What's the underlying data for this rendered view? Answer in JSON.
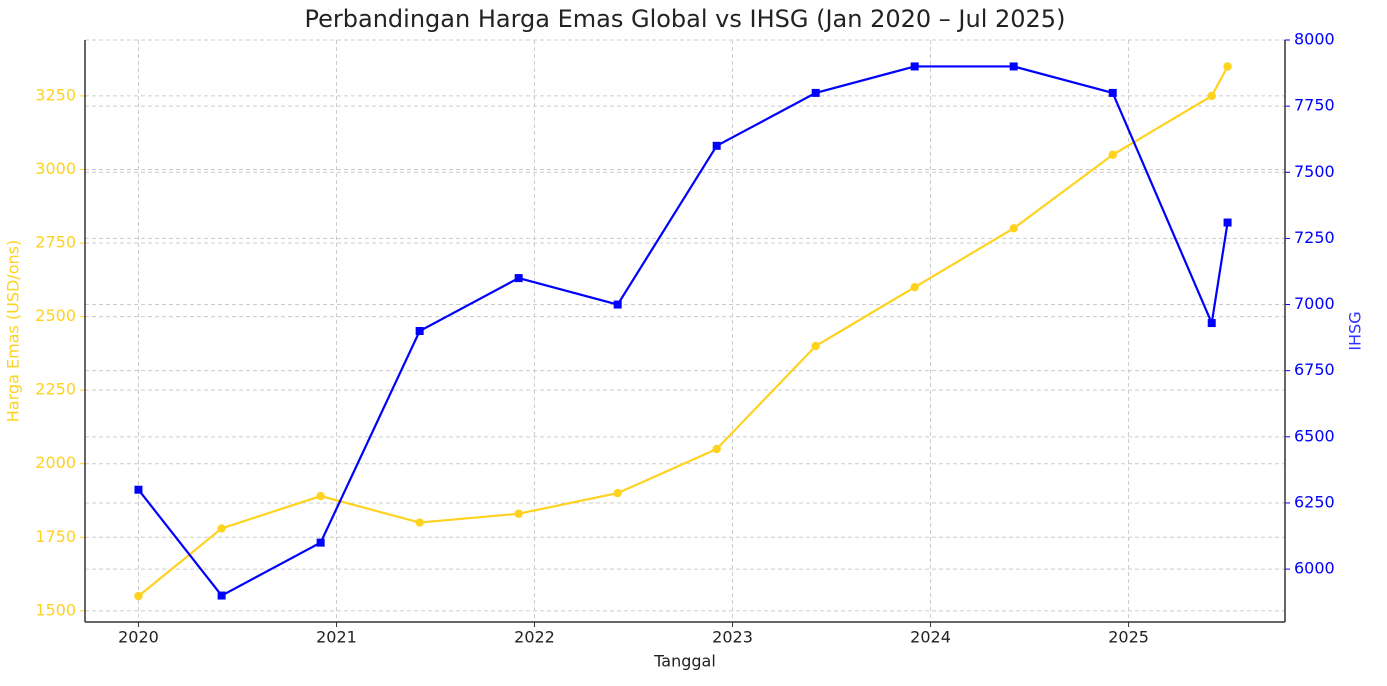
{
  "chart_data": {
    "type": "line",
    "title": "Perbandingan Harga Emas Global vs IHSG (Jan 2020 – Jul 2025)",
    "x_label": "Tanggal",
    "y_label": "Harga Emas (USD/ons)",
    "y2_label": "IHSG",
    "x": [
      2020.0,
      2020.42,
      2020.92,
      2021.42,
      2021.92,
      2022.42,
      2022.92,
      2023.42,
      2023.92,
      2024.42,
      2024.92,
      2025.42,
      2025.5
    ],
    "series": [
      {
        "color": "#ffd21f",
        "marker": "circle",
        "values": [
          1550,
          1780,
          1890,
          1800,
          1830,
          1900,
          2050,
          2400,
          2600,
          2800,
          3050,
          3250,
          3350
        ]
      },
      {
        "color": "#0000ff",
        "marker": "square",
        "axis": "y2",
        "values": [
          6300,
          5900,
          6100,
          6900,
          7100,
          7000,
          7600,
          7800,
          7900,
          7900,
          7800,
          6930,
          7310
        ]
      }
    ],
    "xlim": [
      2019.73,
      2025.79
    ],
    "xticks": [
      2020,
      2021,
      2022,
      2023,
      2024,
      2025
    ],
    "ylim": [
      1462,
      3440
    ],
    "yticks": [
      1500,
      1750,
      2000,
      2250,
      2500,
      2750,
      3000,
      3250
    ],
    "y2lim": [
      5800,
      8000
    ],
    "y2ticks": [
      6000,
      6250,
      6500,
      6750,
      7000,
      7250,
      7500,
      7750,
      8000
    ],
    "grid": true
  }
}
